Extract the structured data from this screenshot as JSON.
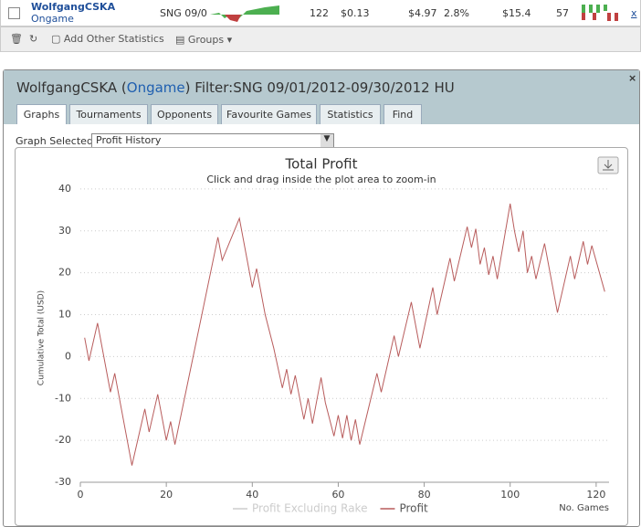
{
  "row": {
    "player": "WolfgangCSKA",
    "site": "Ongame",
    "game": "SNG 09/0",
    "games": "122",
    "avg_stake": "$0.13",
    "profit": "$4.97",
    "roi": "2.8%",
    "winnings": "$15.4",
    "col6": "57",
    "remove": "x"
  },
  "toolbar": {
    "add": "Add Other Statistics",
    "groups": "Groups"
  },
  "header": {
    "name": "WolfgangCSKA (",
    "site": "Ongame",
    "filter": ") Filter:SNG 09/01/2012-09/30/2012 HU"
  },
  "tabs": [
    "Graphs",
    "Tournaments",
    "Opponents",
    "Favourite Games",
    "Statistics",
    "Find"
  ],
  "graph_select": {
    "label": "Graph Selected:",
    "value": "Profit History"
  },
  "chart_data": {
    "type": "line",
    "title": "Total Profit",
    "subtitle": "Click and drag inside the plot area to zoom-in",
    "y_label": "Cumulative Total (USD)",
    "x_label": "No. Games",
    "xlim": [
      0,
      123
    ],
    "xticks": [
      0,
      20,
      40,
      60,
      80,
      100,
      120
    ],
    "ylim": [
      -30,
      45
    ],
    "yticks": [
      -30,
      -20,
      -10,
      0,
      10,
      20,
      30,
      40
    ],
    "grid": true,
    "x": [
      1,
      2,
      4,
      7,
      8,
      12,
      15,
      16,
      18,
      20,
      21,
      22,
      32,
      33,
      35,
      37,
      40,
      41,
      43,
      45,
      47,
      48,
      49,
      50,
      52,
      53,
      54,
      56,
      57,
      59,
      60,
      61,
      62,
      63,
      64,
      65,
      69,
      70,
      73,
      74,
      77,
      79,
      82,
      83,
      86,
      87,
      90,
      91,
      92,
      93,
      94,
      95,
      96,
      97,
      100,
      101,
      102,
      103,
      104,
      105,
      106,
      108,
      111,
      114,
      115,
      117,
      118,
      119,
      122
    ],
    "series": [
      {
        "name": "Profit Excluding Rake",
        "color": "#cccccc",
        "hidden": true
      },
      {
        "name": "Profit",
        "color": "#b85c5c",
        "values": [
          4.5,
          -1,
          8,
          -8.5,
          -4,
          -26,
          -12.5,
          -18,
          -9,
          -20,
          -15.5,
          -21,
          28.5,
          23,
          28,
          33,
          16.5,
          21,
          10,
          2,
          -7.5,
          -3,
          -9,
          -4.5,
          -15,
          -10,
          -16,
          -5,
          -11,
          -19,
          -14,
          -19.5,
          -14,
          -20,
          -15,
          -21,
          -4,
          -8.5,
          5,
          0,
          13,
          2,
          16.5,
          10,
          23.5,
          18,
          31,
          26,
          30.5,
          22,
          26,
          19.5,
          24,
          18.5,
          36.5,
          30,
          25,
          30,
          20,
          24,
          18.5,
          27,
          10.5,
          24,
          18.5,
          27.5,
          22,
          26.5,
          15.5
        ]
      }
    ]
  }
}
